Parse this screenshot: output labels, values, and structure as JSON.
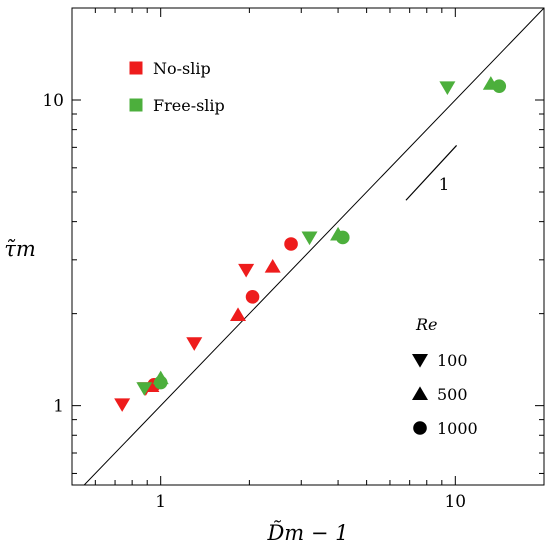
{
  "chart_data": {
    "type": "scatter",
    "xlabel": "D̃m − 1",
    "ylabel": "τ̃m",
    "x_scale": "log",
    "y_scale": "log",
    "xlim": [
      0.5,
      20
    ],
    "ylim": [
      0.55,
      20
    ],
    "x_ticks": [
      {
        "value": 1,
        "label": "1"
      },
      {
        "value": 10,
        "label": "10"
      }
    ],
    "y_ticks": [
      {
        "value": 1,
        "label": "1"
      },
      {
        "value": 10,
        "label": "10"
      }
    ],
    "reference_line": {
      "slope": 1,
      "through": [
        [
          0.55,
          0.55
        ],
        [
          20,
          20
        ]
      ]
    },
    "slope_indicator": {
      "label": "1",
      "from": [
        6.8,
        4.7
      ],
      "to": [
        10.1,
        7.1
      ]
    },
    "legend_boundary": {
      "items": [
        {
          "label": "No-slip",
          "color": "#ee1c1c"
        },
        {
          "label": "Free-slip",
          "color": "#4caf3c"
        }
      ]
    },
    "legend_re": {
      "title": "Re",
      "items": [
        {
          "label": "100",
          "marker": "triangle-down"
        },
        {
          "label": "500",
          "marker": "triangle-up"
        },
        {
          "label": "1000",
          "marker": "circle"
        }
      ]
    },
    "series": [
      {
        "boundary": "No-slip",
        "Re": 100,
        "marker": "triangle-down",
        "color": "#ee1c1c",
        "points": [
          [
            0.74,
            1.01
          ],
          [
            0.89,
            1.14
          ],
          [
            1.3,
            1.6
          ],
          [
            1.95,
            2.78
          ]
        ]
      },
      {
        "boundary": "No-slip",
        "Re": 500,
        "marker": "triangle-up",
        "color": "#ee1c1c",
        "points": [
          [
            0.93,
            1.16
          ],
          [
            1.83,
            1.98
          ],
          [
            2.4,
            2.85
          ]
        ]
      },
      {
        "boundary": "No-slip",
        "Re": 1000,
        "marker": "circle",
        "color": "#ee1c1c",
        "points": [
          [
            0.95,
            1.17
          ],
          [
            2.05,
            2.27
          ],
          [
            2.77,
            3.38
          ]
        ]
      },
      {
        "boundary": "Free-slip",
        "Re": 100,
        "marker": "triangle-down",
        "color": "#4caf3c",
        "points": [
          [
            0.88,
            1.14
          ],
          [
            3.2,
            3.55
          ],
          [
            9.4,
            11.0
          ]
        ]
      },
      {
        "boundary": "Free-slip",
        "Re": 500,
        "marker": "triangle-up",
        "color": "#4caf3c",
        "points": [
          [
            1.0,
            1.23
          ],
          [
            4.0,
            3.63
          ],
          [
            13.2,
            11.3
          ]
        ]
      },
      {
        "boundary": "Free-slip",
        "Re": 1000,
        "marker": "circle",
        "color": "#4caf3c",
        "points": [
          [
            1.0,
            1.19
          ],
          [
            4.15,
            3.55
          ],
          [
            14.1,
            11.1
          ]
        ]
      }
    ]
  }
}
